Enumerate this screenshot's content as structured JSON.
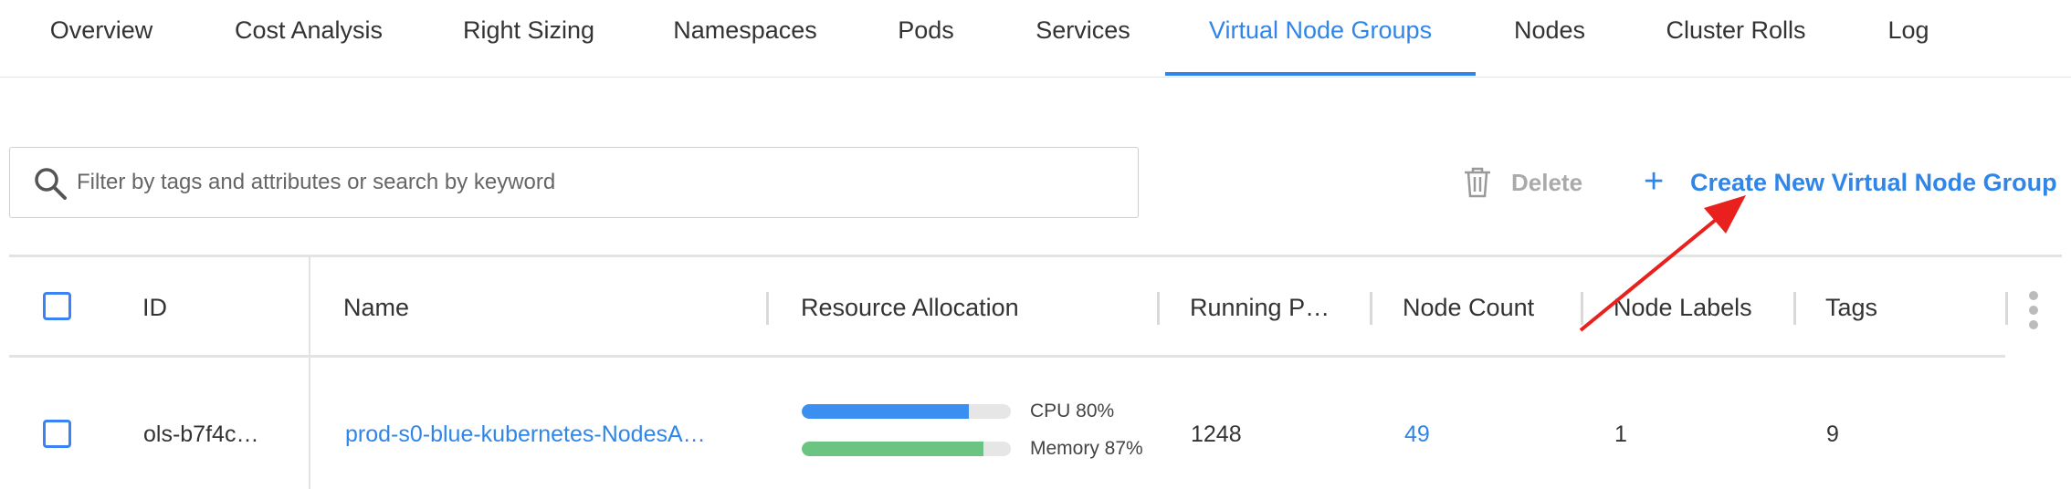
{
  "tabs": [
    "Overview",
    "Cost Analysis",
    "Right Sizing",
    "Namespaces",
    "Pods",
    "Services",
    "Virtual Node Groups",
    "Nodes",
    "Cluster Rolls",
    "Log"
  ],
  "active_tab": 6,
  "search": {
    "placeholder": "Filter by tags and attributes or search by keyword"
  },
  "actions": {
    "delete": "Delete",
    "create": "Create New Virtual Node Group"
  },
  "table": {
    "columns": [
      "ID",
      "Name",
      "Resource Allocation",
      "Running P…",
      "Node Count",
      "Node Labels",
      "Tags"
    ],
    "rows": [
      {
        "id": "ols-b7f4c…",
        "name": "prod-s0-blue-kubernetes-NodesA…",
        "cpu": {
          "value": 80,
          "label": "CPU 80%"
        },
        "memory": {
          "value": 87,
          "label": "Memory 87%"
        },
        "running": "1248",
        "node_count": "49",
        "node_labels": "1",
        "tags": "9"
      }
    ]
  }
}
